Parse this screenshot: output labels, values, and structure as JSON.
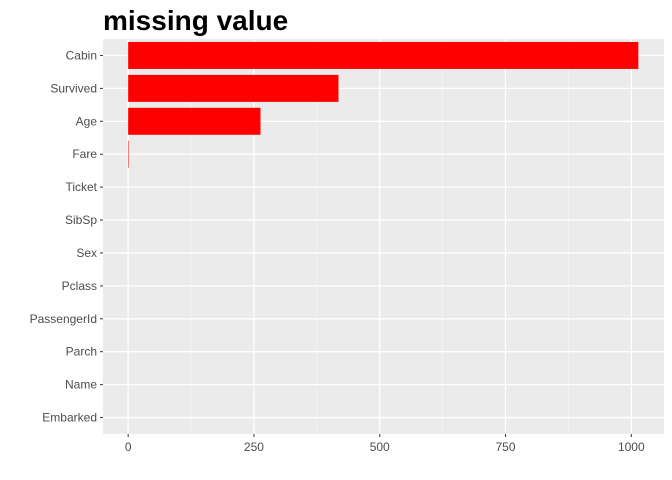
{
  "chart_data": {
    "type": "bar",
    "orientation": "horizontal",
    "title": "missing value",
    "xlabel": "",
    "ylabel": "",
    "categories": [
      "Cabin",
      "Survived",
      "Age",
      "Fare",
      "Ticket",
      "SibSp",
      "Sex",
      "Pclass",
      "PassengerId",
      "Parch",
      "Name",
      "Embarked"
    ],
    "values": [
      1014,
      418,
      263,
      1,
      0,
      0,
      0,
      0,
      0,
      0,
      0,
      0
    ],
    "xlim": [
      -50,
      1065
    ],
    "xticks": [
      0,
      250,
      500,
      750,
      1000
    ],
    "xtick_labels": [
      "0",
      "250",
      "500",
      "750",
      "1000"
    ],
    "grid": true,
    "legend": "none",
    "colors": {
      "bar": "#ff0000",
      "panel_background": "#ebebeb",
      "grid_major": "#ffffff",
      "grid_minor": "#f5f5f5",
      "tick_text": "#4d4d4d",
      "tick_mark": "#333333",
      "title": "#000000"
    }
  }
}
